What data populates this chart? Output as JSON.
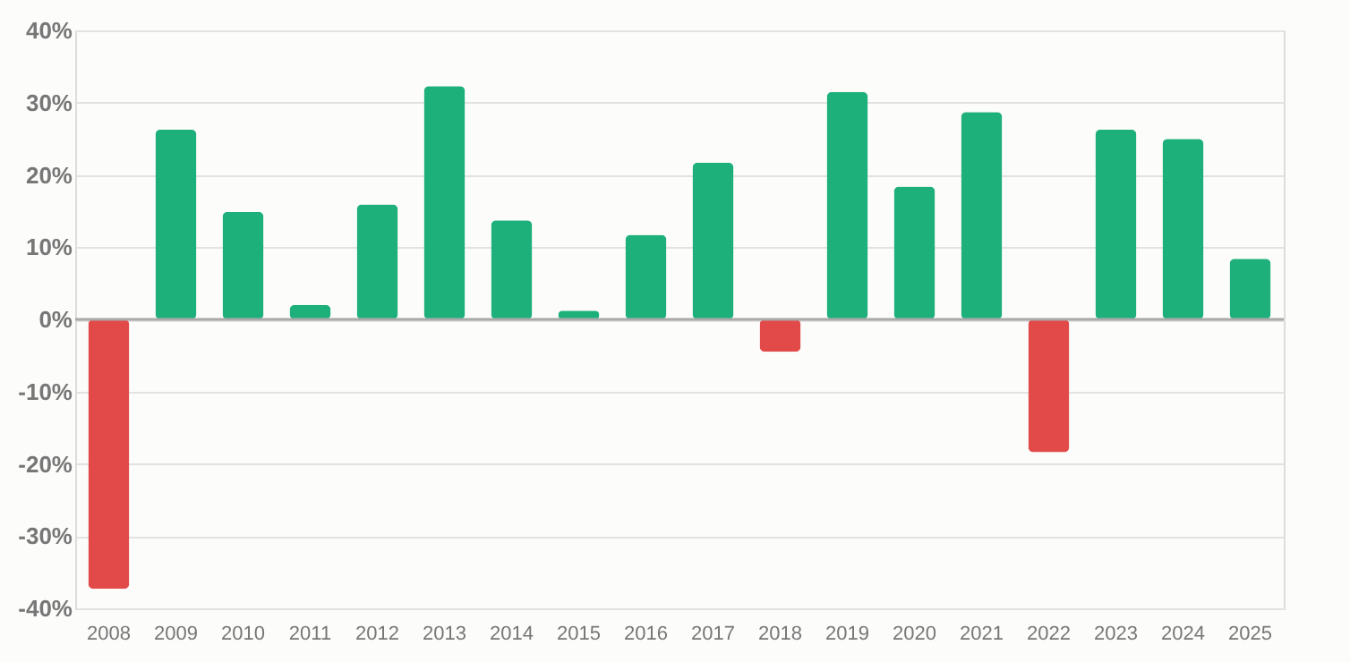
{
  "chart_data": {
    "type": "bar",
    "categories": [
      "2008",
      "2009",
      "2010",
      "2011",
      "2012",
      "2013",
      "2014",
      "2015",
      "2016",
      "2017",
      "2018",
      "2019",
      "2020",
      "2021",
      "2022",
      "2023",
      "2024",
      "2025"
    ],
    "values": [
      -37.3,
      26.3,
      14.9,
      2.0,
      15.9,
      32.3,
      13.7,
      1.2,
      11.7,
      21.7,
      -4.5,
      31.5,
      18.4,
      28.7,
      -18.4,
      26.3,
      25.0,
      8.4
    ],
    "colors": [
      "#e24a4a",
      "#1db07a",
      "#1db07a",
      "#1db07a",
      "#1db07a",
      "#1db07a",
      "#1db07a",
      "#1db07a",
      "#1db07a",
      "#1db07a",
      "#e24a4a",
      "#1db07a",
      "#1db07a",
      "#1db07a",
      "#e24a4a",
      "#1db07a",
      "#1db07a",
      "#1db07a"
    ],
    "ylim": [
      -40,
      40
    ],
    "yticks": [
      {
        "value": -40,
        "label": "-40%"
      },
      {
        "value": -30,
        "label": "-30%"
      },
      {
        "value": -20,
        "label": "-20%"
      },
      {
        "value": -10,
        "label": "-10%"
      },
      {
        "value": 0,
        "label": "0%"
      },
      {
        "value": 10,
        "label": "10%"
      },
      {
        "value": 20,
        "label": "20%"
      },
      {
        "value": 30,
        "label": "30%"
      },
      {
        "value": 40,
        "label": "40%"
      }
    ],
    "grid": "y"
  }
}
